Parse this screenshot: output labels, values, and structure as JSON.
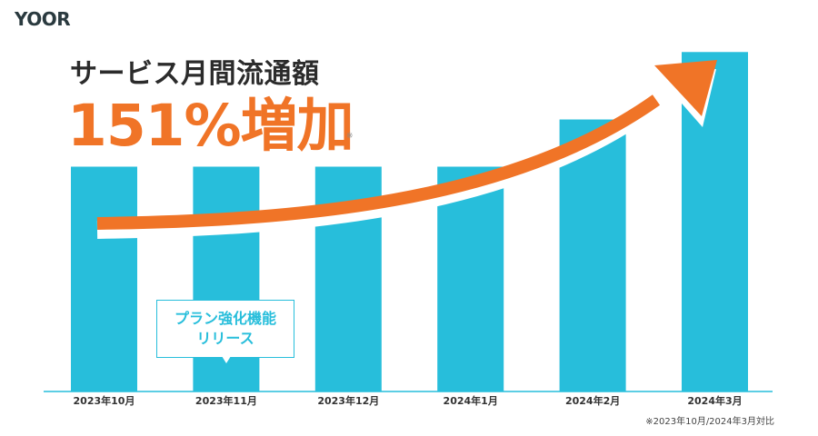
{
  "brand": {
    "logo_text": "YOOR"
  },
  "headline": {
    "title": "サービス月間流通額",
    "highlight": "151%増加",
    "mark": "※"
  },
  "callout": {
    "line1": "プラン強化機能",
    "line2": "リリース"
  },
  "footnote": "※2023年10月/2024年3月対比",
  "colors": {
    "bar": "#27bedb",
    "arrow": "#f07427",
    "text": "#2b2b2b",
    "axis": "#27bedb"
  },
  "chart_data": {
    "type": "bar",
    "categories": [
      "2023年10月",
      "2023年11月",
      "2023年12月",
      "2024年1月",
      "2024年2月",
      "2024年3月"
    ],
    "values": [
      1.0,
      1.0,
      1.0,
      1.0,
      1.21,
      1.51
    ],
    "ylim": [
      0,
      1.6
    ],
    "title": "",
    "xlabel": "",
    "ylabel": "",
    "grid": false
  }
}
